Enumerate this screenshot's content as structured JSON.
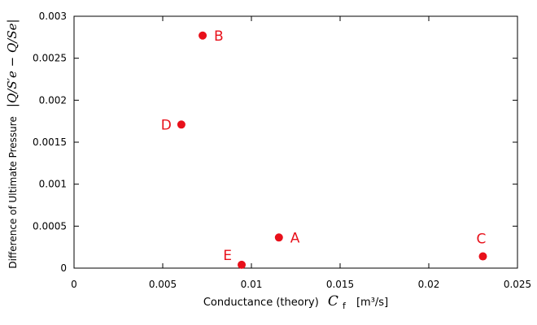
{
  "chart_data": {
    "type": "scatter",
    "title": "",
    "xlim": [
      0,
      0.025
    ],
    "ylim": [
      0,
      0.003
    ],
    "x_ticks": [
      "0",
      "0.005",
      "0.01",
      "0.015",
      "0.02",
      "0.025"
    ],
    "y_ticks": [
      "0",
      "0.0005",
      "0.001",
      "0.0015",
      "0.002",
      "0.0025",
      "0.003"
    ],
    "x_tick_values": [
      0,
      0.005,
      0.01,
      0.015,
      0.02,
      0.025
    ],
    "y_tick_values": [
      0,
      0.0005,
      0.001,
      0.0015,
      0.002,
      0.0025,
      0.003
    ],
    "xlabel": {
      "text": "Conductance (theory)",
      "symbol": "C",
      "subscript": "f",
      "unit": "[m³/s]"
    },
    "ylabel": {
      "text": "Difference of Ultimate Pressure",
      "expression": "|Q/S′e − Q/Se|"
    },
    "grid": false,
    "legend": "none",
    "marker_color": "#e8101a",
    "label_color": "#e8101a",
    "points": [
      {
        "label": "A",
        "x": 0.01155,
        "y": 0.000365,
        "label_side": "right"
      },
      {
        "label": "B",
        "x": 0.00725,
        "y": 0.00277,
        "label_side": "right"
      },
      {
        "label": "C",
        "x": 0.02305,
        "y": 0.00014,
        "label_side": "above"
      },
      {
        "label": "D",
        "x": 0.00605,
        "y": 0.00171,
        "label_side": "left"
      },
      {
        "label": "E",
        "x": 0.00945,
        "y": 4e-05,
        "label_side": "above-left"
      }
    ]
  }
}
